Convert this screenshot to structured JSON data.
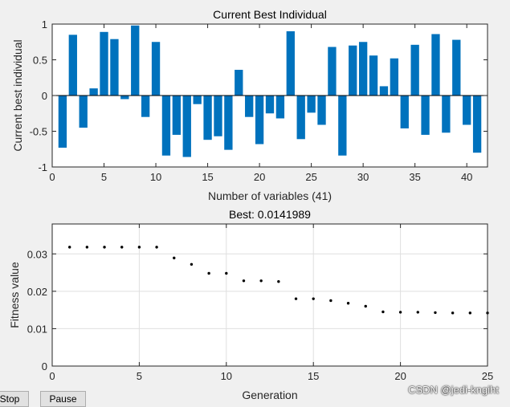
{
  "chart_data": [
    {
      "type": "bar",
      "title": "Current Best Individual",
      "xlabel": "Number of variables (41)",
      "ylabel": "Current best individual",
      "xlim": [
        0,
        42
      ],
      "ylim": [
        -1,
        1
      ],
      "xticks": [
        0,
        5,
        10,
        15,
        20,
        25,
        30,
        35,
        40
      ],
      "yticks": [
        -1,
        -0.5,
        0,
        0.5,
        1
      ],
      "ytick_labels": [
        "-1",
        "-0.5",
        "0",
        "0.5",
        "1"
      ],
      "bar_color": "#0072bd",
      "categories": [
        1,
        2,
        3,
        4,
        5,
        6,
        7,
        8,
        9,
        10,
        11,
        12,
        13,
        14,
        15,
        16,
        17,
        18,
        19,
        20,
        21,
        22,
        23,
        24,
        25,
        26,
        27,
        28,
        29,
        30,
        31,
        32,
        33,
        34,
        35,
        36,
        37,
        38,
        39,
        40,
        41
      ],
      "values": [
        -0.73,
        0.85,
        -0.45,
        0.1,
        0.89,
        0.79,
        -0.05,
        0.98,
        -0.3,
        0.75,
        -0.84,
        -0.55,
        -0.86,
        -0.12,
        -0.62,
        -0.57,
        -0.76,
        0.36,
        -0.3,
        -0.68,
        -0.25,
        -0.32,
        0.9,
        -0.61,
        -0.24,
        -0.41,
        0.68,
        -0.84,
        0.7,
        0.75,
        0.56,
        0.13,
        0.52,
        -0.46,
        0.71,
        -0.55,
        0.86,
        -0.52,
        0.78,
        -0.41,
        -0.8
      ]
    },
    {
      "type": "scatter",
      "title": "Best: 0.0141989",
      "xlabel": "Generation",
      "ylabel": "Fitness value",
      "xlim": [
        0,
        25
      ],
      "ylim": [
        0,
        0.038
      ],
      "xticks": [
        0,
        5,
        10,
        15,
        20,
        25
      ],
      "yticks": [
        0,
        0.01,
        0.02,
        0.03
      ],
      "ytick_labels": [
        "0",
        "0.01",
        "0.02",
        "0.03"
      ],
      "grid": true,
      "marker_color": "#000000",
      "x": [
        1,
        2,
        3,
        4,
        5,
        6,
        7,
        8,
        9,
        10,
        11,
        12,
        13,
        14,
        15,
        16,
        17,
        18,
        19,
        20,
        21,
        22,
        23,
        24,
        25
      ],
      "y": [
        0.0318,
        0.0318,
        0.0318,
        0.0318,
        0.0318,
        0.0318,
        0.0289,
        0.0272,
        0.0248,
        0.0248,
        0.0228,
        0.0228,
        0.0226,
        0.018,
        0.018,
        0.0175,
        0.0168,
        0.016,
        0.0145,
        0.0144,
        0.0144,
        0.0143,
        0.0142,
        0.0142,
        0.0142
      ]
    }
  ],
  "controls": {
    "stop_label": "Stop",
    "pause_label": "Pause"
  },
  "watermark": "CSDN @jedi-kngiht"
}
